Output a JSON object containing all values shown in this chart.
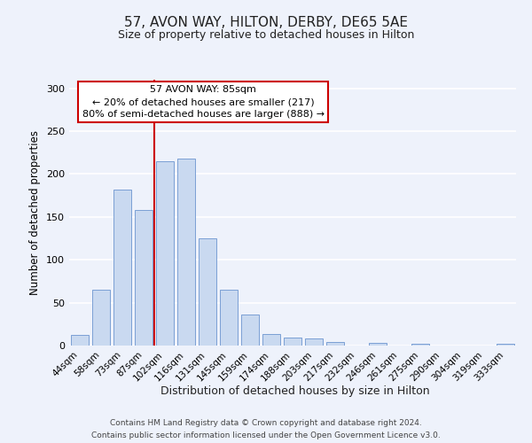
{
  "title": "57, AVON WAY, HILTON, DERBY, DE65 5AE",
  "subtitle": "Size of property relative to detached houses in Hilton",
  "xlabel": "Distribution of detached houses by size in Hilton",
  "ylabel": "Number of detached properties",
  "bar_labels": [
    "44sqm",
    "58sqm",
    "73sqm",
    "87sqm",
    "102sqm",
    "116sqm",
    "131sqm",
    "145sqm",
    "159sqm",
    "174sqm",
    "188sqm",
    "203sqm",
    "217sqm",
    "232sqm",
    "246sqm",
    "261sqm",
    "275sqm",
    "290sqm",
    "304sqm",
    "319sqm",
    "333sqm"
  ],
  "bar_heights": [
    12,
    65,
    182,
    158,
    215,
    218,
    125,
    65,
    36,
    13,
    9,
    8,
    4,
    0,
    3,
    0,
    2,
    0,
    0,
    0,
    2
  ],
  "bar_color": "#c9d9f0",
  "bar_edge_color": "#7a9fd4",
  "ylim": [
    0,
    310
  ],
  "yticks": [
    0,
    50,
    100,
    150,
    200,
    250,
    300
  ],
  "vline_x_index": 3,
  "vline_color": "#cc0000",
  "annotation_title": "57 AVON WAY: 85sqm",
  "annotation_line1": "← 20% of detached houses are smaller (217)",
  "annotation_line2": "80% of semi-detached houses are larger (888) →",
  "annotation_box_color": "#ffffff",
  "annotation_box_edge": "#cc0000",
  "background_color": "#eef2fb",
  "grid_color": "#ffffff",
  "footer_line1": "Contains HM Land Registry data © Crown copyright and database right 2024.",
  "footer_line2": "Contains public sector information licensed under the Open Government Licence v3.0."
}
